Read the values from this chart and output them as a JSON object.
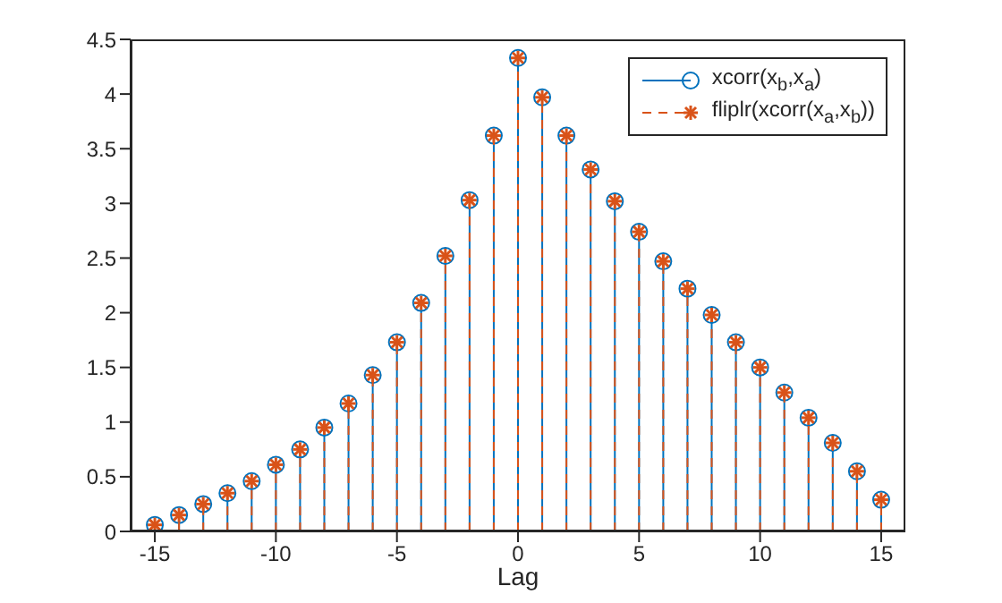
{
  "chart_data": {
    "type": "lollipop",
    "xlabel": "Lag",
    "xlim": [
      -16,
      16
    ],
    "xticks": [
      -15,
      -10,
      -5,
      0,
      5,
      10,
      15
    ],
    "ylim": [
      0,
      4.5
    ],
    "yticks": [
      0,
      0.5,
      1,
      1.5,
      2,
      2.5,
      3,
      3.5,
      4,
      4.5
    ],
    "legend": "top right",
    "x": [
      -15,
      -14,
      -13,
      -12,
      -11,
      -10,
      -9,
      -8,
      -7,
      -6,
      -5,
      -4,
      -3,
      -2,
      -1,
      0,
      1,
      2,
      3,
      4,
      5,
      6,
      7,
      8,
      9,
      10,
      11,
      12,
      13,
      14,
      15
    ],
    "series": [
      {
        "name": "xcorr(x$_{b}$,x$_{a}$)",
        "color": "#0072bd",
        "marker": "circle",
        "line_style": "solid",
        "values": [
          0.06,
          0.15,
          0.25,
          0.35,
          0.46,
          0.61,
          0.75,
          0.95,
          1.17,
          1.43,
          1.73,
          2.09,
          2.52,
          3.03,
          3.62,
          4.33,
          3.97,
          3.62,
          3.31,
          3.02,
          2.74,
          2.47,
          2.22,
          1.98,
          1.73,
          1.5,
          1.27,
          1.04,
          0.81,
          0.55,
          0.29
        ]
      },
      {
        "name": "fliplr(xcorr(x$_{a}$,x$_{b}$))",
        "color": "#d95319",
        "marker": "cross",
        "line_style": "dashed",
        "values": [
          0.06,
          0.15,
          0.25,
          0.35,
          0.46,
          0.61,
          0.75,
          0.95,
          1.17,
          1.43,
          1.73,
          2.09,
          2.52,
          3.03,
          3.62,
          4.33,
          3.97,
          3.62,
          3.31,
          3.02,
          2.74,
          2.47,
          2.22,
          1.98,
          1.73,
          1.5,
          1.27,
          1.04,
          0.81,
          0.55,
          0.29
        ]
      }
    ]
  }
}
